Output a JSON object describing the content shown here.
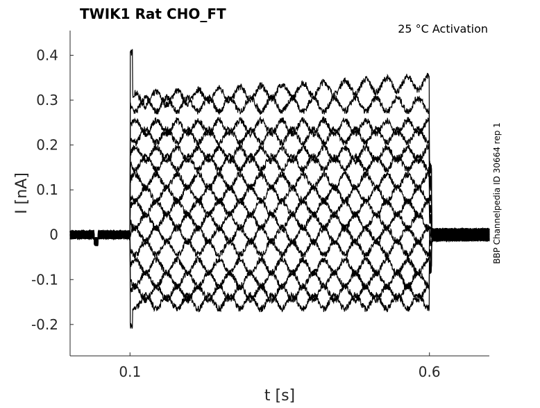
{
  "chart_data": {
    "type": "line",
    "title": "TWIK1  Rat  CHO_FT",
    "annotation": "25 °C  Activation",
    "side_label": "BBP Channelpedia ID 30664 rep 1",
    "xlabel": "t [s]",
    "ylabel": "I [nA]",
    "xlim": [
      0,
      0.7
    ],
    "ylim": [
      -0.27,
      0.455
    ],
    "xticks": [
      0.1,
      0.6
    ],
    "xtick_labels": [
      "0.1",
      "0.6"
    ],
    "yticks": [
      -0.2,
      -0.1,
      0,
      0.1,
      0.2,
      0.3,
      0.4
    ],
    "ytick_labels": [
      "-0.2",
      "-0.1",
      "0",
      "0.1",
      "0.2",
      "0.3",
      "0.4"
    ],
    "grid": false,
    "pulse_start": 0.1,
    "pulse_end": 0.6,
    "holding_level": 0.0,
    "oscillation_amplitude": 0.015,
    "oscillation_period": 0.035,
    "series_steady_levels": [
      0.3,
      0.29,
      0.24,
      0.22,
      0.18,
      0.16,
      0.12,
      0.09,
      0.06,
      0.03,
      0.0,
      -0.03,
      -0.07,
      -0.1,
      -0.13,
      -0.15
    ],
    "color": "#000000"
  }
}
